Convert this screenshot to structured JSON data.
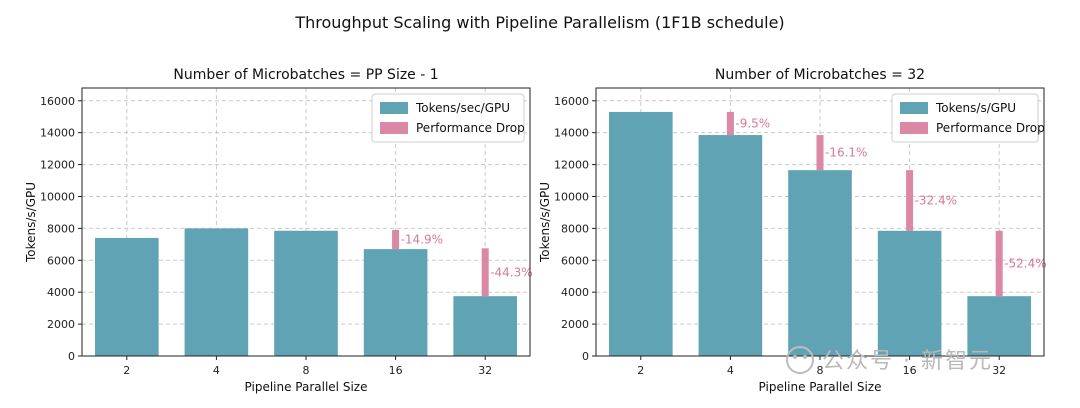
{
  "figure_title": "Throughput Scaling with Pipeline Parallelism (1F1B schedule)",
  "colors": {
    "throughput": "#5fa3b5",
    "drop": "#db87a6",
    "drop_text": "#d9779d",
    "grid": "#c9c9c9"
  },
  "watermark": "公众号 · 新智元",
  "chart_data": [
    {
      "type": "bar",
      "title": "Number of Microbatches = PP Size - 1",
      "xlabel": "Pipeline Parallel Size",
      "ylabel": "Tokens/s/GPU",
      "categories": [
        "2",
        "4",
        "8",
        "16",
        "32"
      ],
      "ylim": [
        0,
        16800
      ],
      "yticks": [
        0,
        2000,
        4000,
        6000,
        8000,
        10000,
        12000,
        14000,
        16000
      ],
      "grid": true,
      "legend_position": "top-right",
      "series": [
        {
          "name": "Tokens/sec/GPU",
          "values": [
            7400,
            8000,
            7850,
            6700,
            3750
          ]
        },
        {
          "name": "Performance Drop",
          "values": [
            null,
            null,
            null,
            1200,
            3000
          ]
        }
      ],
      "drop_labels": [
        "",
        "",
        "",
        "-14.9%",
        "-44.3%"
      ]
    },
    {
      "type": "bar",
      "title": "Number of Microbatches = 32",
      "xlabel": "Pipeline Parallel Size",
      "ylabel": "Tokens/s/GPU",
      "categories": [
        "2",
        "4",
        "8",
        "16",
        "32"
      ],
      "ylim": [
        0,
        16800
      ],
      "yticks": [
        0,
        2000,
        4000,
        6000,
        8000,
        10000,
        12000,
        14000,
        16000
      ],
      "grid": true,
      "legend_position": "top-right",
      "series": [
        {
          "name": "Tokens/s/GPU",
          "values": [
            15300,
            13850,
            11650,
            7850,
            3750
          ]
        },
        {
          "name": "Performance Drop",
          "values": [
            null,
            1450,
            2200,
            3800,
            4100
          ]
        }
      ],
      "drop_labels": [
        "",
        "-9.5%",
        "-16.1%",
        "-32.4%",
        "-52.4%"
      ]
    }
  ]
}
